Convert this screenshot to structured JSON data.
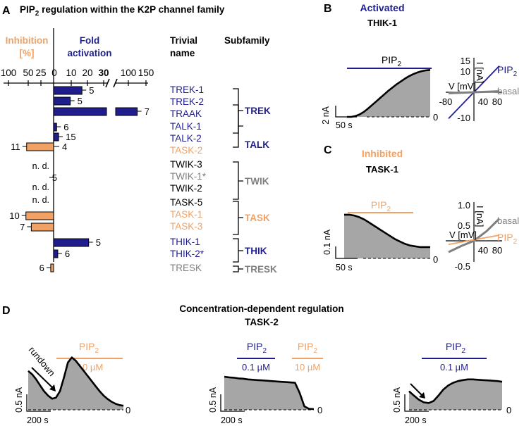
{
  "colors": {
    "blue": "#1f1e8c",
    "orange": "#f0a266",
    "gray": "#7f7f7f",
    "fill": "#a6a6a6",
    "black": "#000000"
  },
  "panels": {
    "A": {
      "letter": "A",
      "title_pre": "PIP",
      "title_sub": "2",
      "title_post": " regulation within the K2P channel family"
    },
    "B": {
      "letter": "B",
      "label": "Activated",
      "channel": "THIK-1"
    },
    "C": {
      "letter": "C",
      "label": "Inhibited",
      "channel": "TASK-1"
    },
    "D": {
      "letter": "D",
      "title": "Concentration-dependent regulation",
      "channel": "TASK-2"
    }
  },
  "panelA": {
    "inhib_label_1": "Inhibition",
    "inhib_label_2": "[%]",
    "act_label_1": "Fold",
    "act_label_2": "activation",
    "col_trivial_1": "Trivial",
    "col_trivial_2": "name",
    "col_subfamily": "Subfamily",
    "axis_ticks": [
      "100",
      "50",
      "25",
      "0",
      "10",
      "20",
      "30",
      "100",
      "150"
    ],
    "nd": "n. d."
  },
  "chart_data": [
    {
      "type": "bar",
      "title": "PIP2 regulation within the K2P channel family",
      "xlabel_left": "Inhibition [%]",
      "xlabel_right": "Fold activation",
      "x_ticks_inhibition": [
        100,
        50,
        25,
        0
      ],
      "x_ticks_activation": [
        0,
        10,
        20,
        30,
        100,
        150
      ],
      "axis_break_after": 30,
      "channels": [
        {
          "name": "TREK-1",
          "subfamily": "TREK",
          "effect": "activation",
          "value": 17,
          "n": "5",
          "color": "#1f1e8c"
        },
        {
          "name": "TREK-2",
          "subfamily": "TREK",
          "effect": "activation",
          "value": 10,
          "n": "5",
          "color": "#1f1e8c"
        },
        {
          "name": "TRAAK",
          "subfamily": "TREK",
          "effect": "activation",
          "value": 115,
          "n": "7",
          "color": "#1f1e8c"
        },
        {
          "name": "TALK-1",
          "subfamily": "TALK",
          "effect": "activation",
          "value": 1.8,
          "n": "6",
          "color": "#1f1e8c"
        },
        {
          "name": "TALK-2",
          "subfamily": "TALK",
          "effect": "activation",
          "value": 3,
          "n": "15",
          "color": "#1f1e8c"
        },
        {
          "name": "TASK-2",
          "subfamily": "TALK",
          "effect": "inhibition",
          "value": 75,
          "n": "11 / 4",
          "color": "#f0a266"
        },
        {
          "name": "TWIK-3",
          "subfamily": "TWIK",
          "effect": "n.d.",
          "value": null,
          "n": "",
          "color": "#000000"
        },
        {
          "name": "TWIK-1*",
          "subfamily": "TWIK",
          "effect": "none",
          "value": 0,
          "n": "5",
          "color": "#7f7f7f"
        },
        {
          "name": "TWIK-2",
          "subfamily": "TWIK",
          "effect": "n.d.",
          "value": null,
          "n": "",
          "color": "#000000"
        },
        {
          "name": "TASK-5",
          "subfamily": "TASK",
          "effect": "n.d.",
          "value": null,
          "n": "",
          "color": "#000000"
        },
        {
          "name": "TASK-1",
          "subfamily": "TASK",
          "effect": "inhibition",
          "value": 77,
          "n": "10",
          "color": "#f0a266"
        },
        {
          "name": "TASK-3",
          "subfamily": "TASK",
          "effect": "inhibition",
          "value": 62,
          "n": "7",
          "color": "#f0a266"
        },
        {
          "name": "THIK-1",
          "subfamily": "THIK",
          "effect": "activation",
          "value": 21,
          "n": "5",
          "color": "#1f1e8c"
        },
        {
          "name": "THIK-2*",
          "subfamily": "THIK",
          "effect": "activation",
          "value": 2.5,
          "n": "6",
          "color": "#1f1e8c"
        },
        {
          "name": "TRESK",
          "subfamily": "TRESK",
          "effect": "inhibition",
          "value": 8,
          "n": "6",
          "color": "#7f7f7f"
        }
      ],
      "subfamilies": [
        {
          "name": "TREK",
          "color": "#1f1e8c"
        },
        {
          "name": "TALK",
          "color": "#1f1e8c"
        },
        {
          "name": "TWIK",
          "color": "#7f7f7f"
        },
        {
          "name": "TASK",
          "color": "#f0a266"
        },
        {
          "name": "THIK",
          "color": "#1f1e8c"
        },
        {
          "name": "TRESK",
          "color": "#7f7f7f"
        }
      ]
    },
    {
      "type": "line",
      "title": "THIK-1 current trace",
      "bar_label_pre": "PIP",
      "bar_label_sub": "2",
      "scale_y": "2 nA",
      "scale_x": "50 s",
      "zero": "0",
      "trace": [
        0.0,
        0.0,
        0.1,
        0.3,
        0.6,
        1.0,
        1.45,
        1.9,
        2.35,
        2.8,
        3.25,
        3.65,
        4.05,
        4.4,
        4.75,
        5.05,
        5.3,
        5.5,
        5.65,
        5.75,
        5.8
      ]
    },
    {
      "type": "line",
      "title": "THIK-1 I-V relation",
      "xlabel": "V [mV]",
      "ylabel": "I [nA]",
      "x_ticks": [
        "-80",
        "40",
        "80"
      ],
      "y_ticks": [
        "15",
        "10",
        "-10"
      ],
      "xlim": [
        -80,
        80
      ],
      "ylim": [
        -12,
        15
      ],
      "series": [
        {
          "name": "PIP2",
          "name_pre": "PIP",
          "name_sub": "2",
          "color": "#1f1e8c",
          "x": [
            -80,
            80
          ],
          "y": [
            -11,
            11
          ]
        },
        {
          "name": "basal",
          "color": "#7f7f7f",
          "x": [
            -80,
            80
          ],
          "y": [
            -0.4,
            0.4
          ]
        }
      ]
    },
    {
      "type": "line",
      "title": "TASK-1 current trace",
      "bar_label_pre": "PIP",
      "bar_label_sub": "2",
      "scale_y": "0.1 nA",
      "scale_x": "50 s",
      "zero": "0",
      "trace": [
        0.27,
        0.27,
        0.265,
        0.255,
        0.24,
        0.22,
        0.2,
        0.18,
        0.16,
        0.14,
        0.12,
        0.105,
        0.09,
        0.08,
        0.075,
        0.07,
        0.07,
        0.07
      ]
    },
    {
      "type": "line",
      "title": "TASK-1 I-V relation",
      "xlabel": "V [mV]",
      "ylabel": "I [nA]",
      "x_ticks": [
        "40",
        "80"
      ],
      "y_ticks": [
        "1.0",
        "0.5",
        "-0.5"
      ],
      "xlim": [
        -80,
        80
      ],
      "ylim": [
        -0.6,
        1.0
      ],
      "series": [
        {
          "name": "basal",
          "color": "#7f7f7f",
          "x": [
            -80,
            -40,
            0,
            40,
            80
          ],
          "y": [
            -0.28,
            -0.13,
            0,
            0.24,
            0.55
          ]
        },
        {
          "name": "PIP2",
          "name_pre": "PIP",
          "name_sub": "2",
          "color": "#f0a266",
          "x": [
            -80,
            80
          ],
          "y": [
            -0.09,
            0.14
          ]
        }
      ]
    },
    {
      "type": "line",
      "title": "TASK-2 rundown then PIP2 10 µM",
      "annotation": "rundown",
      "bars": [
        {
          "label_pre": "PIP",
          "label_sub": "2",
          "conc": "10 µM",
          "color": "#f0a266"
        }
      ],
      "scale_y": "0.5 nA",
      "scale_x": "200 s",
      "zero": "0",
      "trace": [
        1.15,
        1.05,
        0.9,
        0.72,
        0.55,
        0.42,
        0.33,
        0.36,
        0.55,
        0.95,
        1.4,
        1.55,
        1.45,
        1.3,
        1.15,
        1.0,
        0.85,
        0.7,
        0.55,
        0.42,
        0.32,
        0.24,
        0.18,
        0.14,
        0.12
      ]
    },
    {
      "type": "line",
      "title": "TASK-2 PIP2 0.1 µM then 10 µM",
      "bars": [
        {
          "label_pre": "PIP",
          "label_sub": "2",
          "conc": "0.1 µM",
          "color": "#1f1e8c"
        },
        {
          "label_pre": "PIP",
          "label_sub": "2",
          "conc": "10 µM",
          "color": "#f0a266"
        }
      ],
      "scale_y": "0.5 nA",
      "scale_x": "200 s",
      "zero": "0",
      "trace": [
        0.98,
        0.96,
        0.95,
        0.93,
        0.92,
        0.9,
        0.89,
        0.88,
        0.87,
        0.86,
        0.85,
        0.84,
        0.83,
        0.82,
        0.81,
        0.8,
        0.5,
        0.1,
        0.03,
        0.02
      ]
    },
    {
      "type": "line",
      "title": "TASK-2 rundown then PIP2 0.1 µM",
      "bars": [
        {
          "label_pre": "PIP",
          "label_sub": "2",
          "conc": "0.1 µM",
          "color": "#1f1e8c"
        }
      ],
      "scale_y": "0.5 nA",
      "scale_x": "200 s",
      "zero": "0",
      "trace": [
        0.55,
        0.42,
        0.3,
        0.22,
        0.2,
        0.26,
        0.42,
        0.6,
        0.72,
        0.8,
        0.85,
        0.88,
        0.9,
        0.9,
        0.89,
        0.88,
        0.87,
        0.86,
        0.85,
        0.83
      ]
    }
  ]
}
